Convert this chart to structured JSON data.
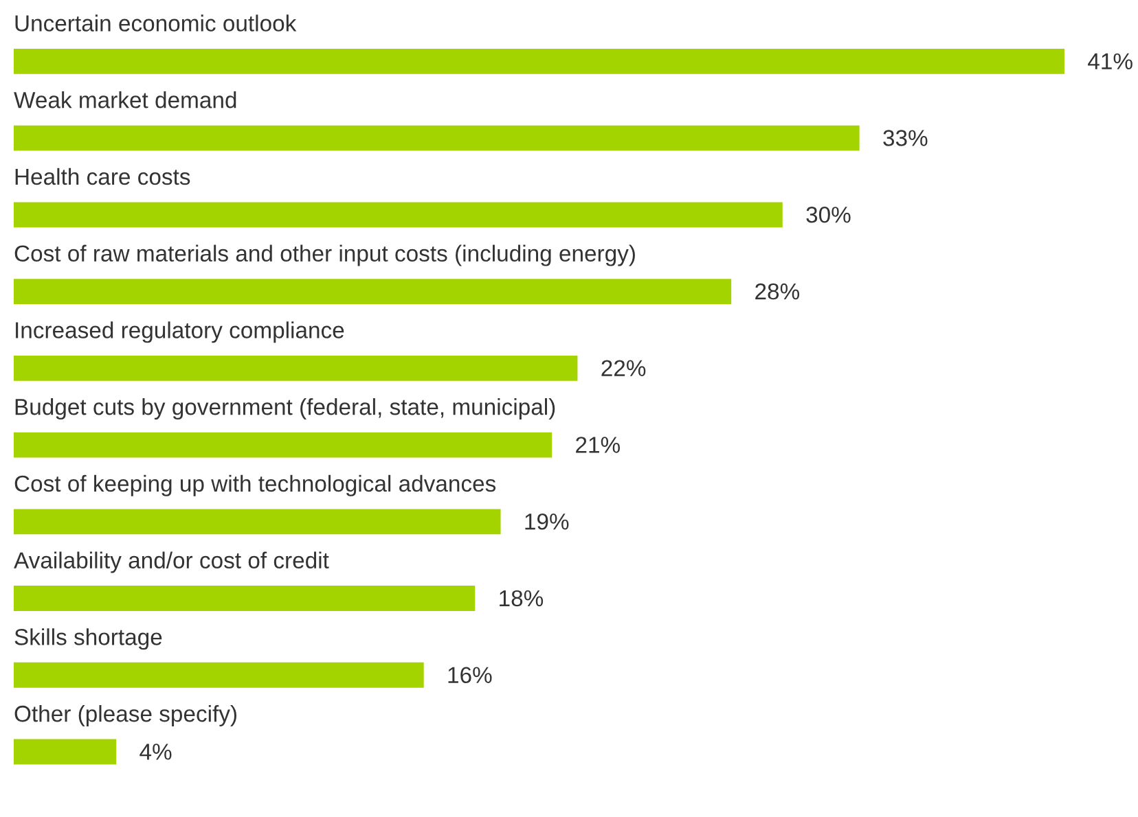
{
  "chart_data": {
    "type": "bar",
    "orientation": "horizontal",
    "categories": [
      "Uncertain economic outlook",
      "Weak market demand",
      "Health care costs",
      "Cost of raw materials and other input costs (including energy)",
      "Increased regulatory compliance",
      "Budget cuts by government (federal, state, municipal)",
      "Cost of keeping up with technological advances",
      "Availability and/or cost of credit",
      "Skills shortage",
      "Other (please specify)"
    ],
    "values": [
      41,
      33,
      30,
      28,
      22,
      21,
      19,
      18,
      16,
      4
    ],
    "value_labels": [
      "41%",
      "33%",
      "30%",
      "28%",
      "22%",
      "21%",
      "19%",
      "18%",
      "16%",
      "4%"
    ],
    "color": "#a4d400"
  }
}
